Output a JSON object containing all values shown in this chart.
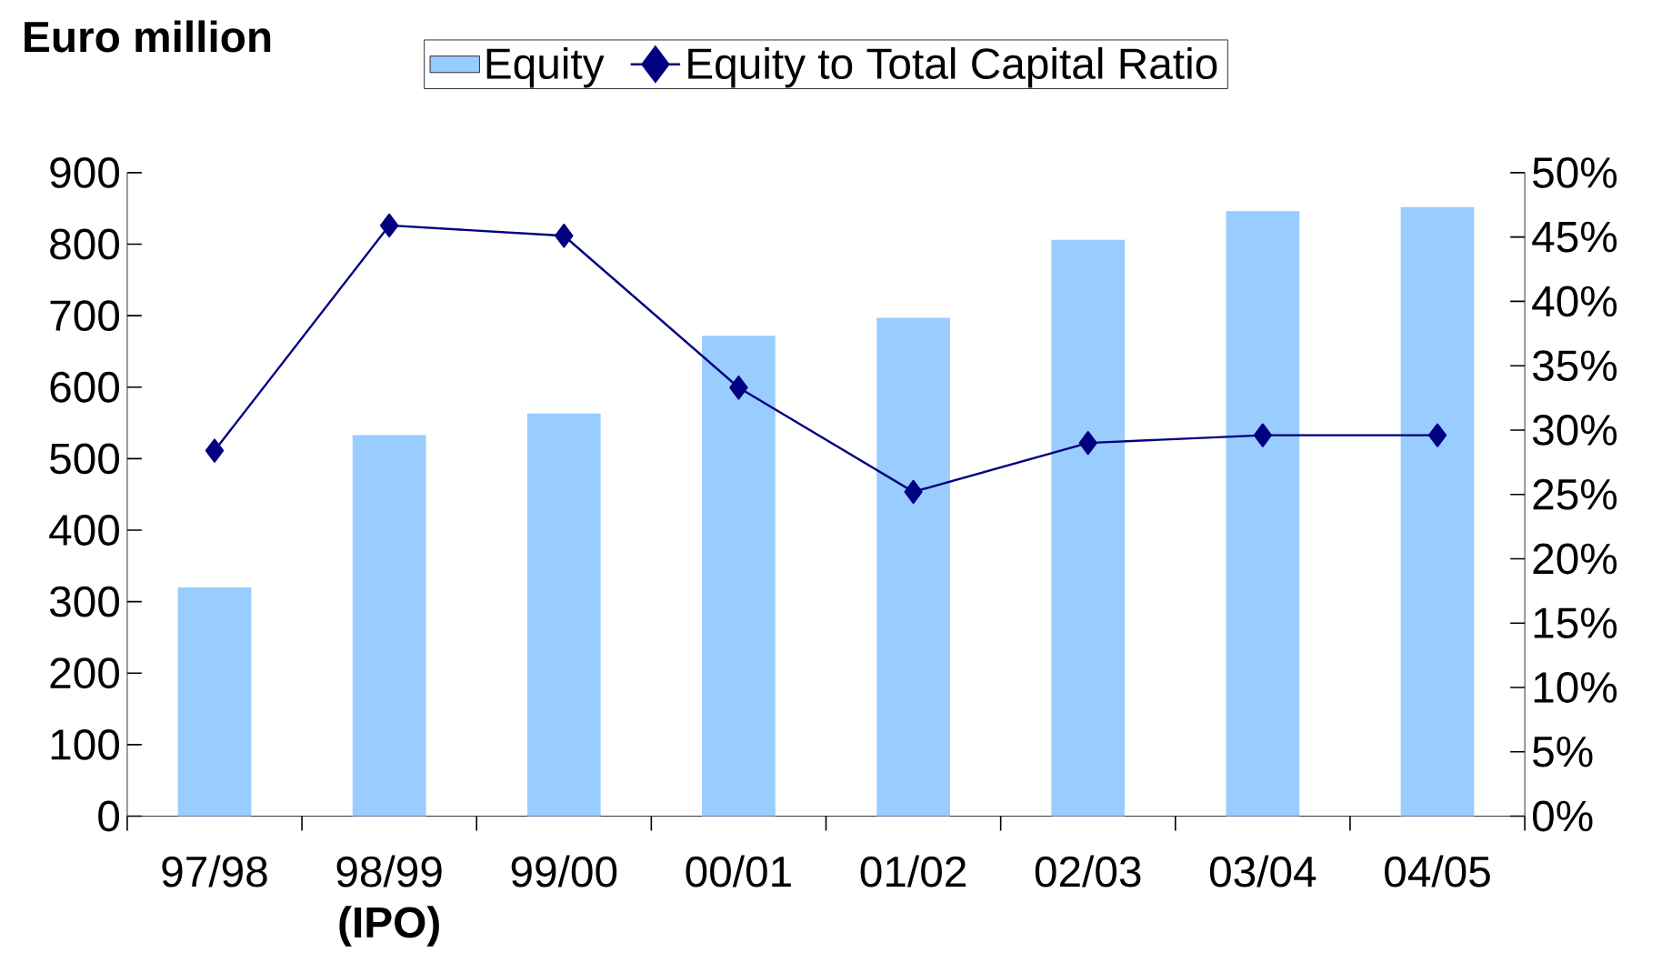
{
  "chart_data": {
    "type": "bar",
    "title": "Euro million",
    "categories": [
      "97/98",
      "98/99 **(IPO)**",
      "99/00",
      "00/01",
      "01/02",
      "02/03",
      "03/04",
      "04/05"
    ],
    "series": [
      {
        "name": "Equity",
        "color": "#99ccff",
        "values": [
          320,
          533,
          563,
          672,
          697,
          806,
          846,
          852
        ]
      },
      {
        "name": "Equity to Total Capital Ratio",
        "type": "line",
        "axis": "y2",
        "color": "#000080",
        "marker": "diamond",
        "values": [
          28.4,
          45.9,
          45.1,
          33.3,
          25.2,
          29.0,
          29.6,
          29.6
        ]
      }
    ],
    "ylim": [
      0,
      900
    ],
    "yticks": [
      0,
      100,
      200,
      300,
      400,
      500,
      600,
      700,
      800,
      900
    ],
    "y2lim": [
      0,
      50
    ],
    "y2ticks": [
      {
        "value": 0,
        "label": "0%"
      },
      {
        "value": 5,
        "label": "5%"
      },
      {
        "value": 10,
        "label": "10%"
      },
      {
        "value": 15,
        "label": "15%"
      },
      {
        "value": 20,
        "label": "20%"
      },
      {
        "value": 25,
        "label": "25%"
      },
      {
        "value": 30,
        "label": "30%"
      },
      {
        "value": 35,
        "label": "35%"
      },
      {
        "value": 40,
        "label": "40%"
      },
      {
        "value": 45,
        "label": "45%"
      },
      {
        "value": 50,
        "label": "50%"
      }
    ],
    "grid": false,
    "legend": "top"
  }
}
